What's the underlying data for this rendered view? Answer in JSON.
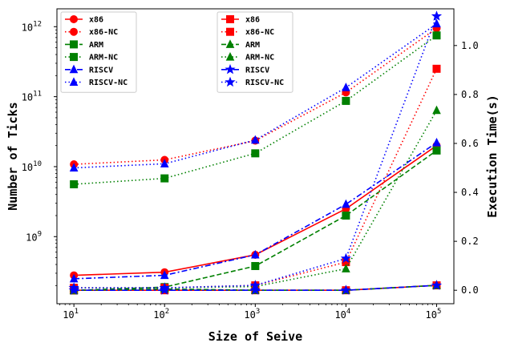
{
  "chart_data": {
    "type": "line",
    "xlabel": "Size of Seive",
    "ylabel_left": "Number of Ticks",
    "ylabel_right": "Execution Time(s)",
    "x": [
      10,
      100,
      1000,
      10000,
      100000
    ],
    "x_scale": "log",
    "xlim": [
      6.5,
      155000
    ],
    "y_left_scale": "log",
    "y_left_lim": [
      110000000,
      1800000000000
    ],
    "y_right_scale": "linear",
    "y_right_lim": [
      -0.055,
      1.15
    ],
    "x_ticks": [
      {
        "value": 10,
        "base": "10",
        "exp": "1"
      },
      {
        "value": 100,
        "base": "10",
        "exp": "2"
      },
      {
        "value": 1000,
        "base": "10",
        "exp": "3"
      },
      {
        "value": 10000,
        "base": "10",
        "exp": "4"
      },
      {
        "value": 100000,
        "base": "10",
        "exp": "5"
      }
    ],
    "y_left_ticks": [
      {
        "value": 1000000000,
        "base": "10",
        "exp": "9"
      },
      {
        "value": 10000000000,
        "base": "10",
        "exp": "10"
      },
      {
        "value": 100000000000,
        "base": "10",
        "exp": "11"
      },
      {
        "value": 1000000000000,
        "base": "10",
        "exp": "12"
      }
    ],
    "y_right_ticks": [
      {
        "value": 0.0,
        "label": "0.0"
      },
      {
        "value": 0.2,
        "label": "0.2"
      },
      {
        "value": 0.4,
        "label": "0.4"
      },
      {
        "value": 0.6,
        "label": "0.6"
      },
      {
        "value": 0.8,
        "label": "0.8"
      },
      {
        "value": 1.0,
        "label": "1.0"
      }
    ],
    "legends": [
      {
        "placement": "top-left",
        "axis": "left",
        "entries": [
          "x86",
          "x86-NC",
          "ARM",
          "ARM-NC",
          "RISCV",
          "RISCV-NC"
        ]
      },
      {
        "placement": "top-center",
        "axis": "right",
        "entries": [
          "x86",
          "x86-NC",
          "ARM",
          "ARM-NC",
          "RISCV",
          "RISCV-NC"
        ]
      }
    ],
    "series_left": [
      {
        "name": "x86",
        "color": "#ff0000",
        "dash": "solid",
        "marker": "circle",
        "values": [
          280000000,
          310000000,
          550000000,
          2500000000,
          20000000000
        ]
      },
      {
        "name": "x86-NC",
        "color": "#ff0000",
        "dash": "dotted",
        "marker": "circle",
        "values": [
          10800000000,
          12500000000,
          23500000000,
          115000000000,
          950000000000
        ]
      },
      {
        "name": "ARM",
        "color": "#008000",
        "dash": "dashed",
        "marker": "square",
        "values": [
          170000000,
          190000000,
          380000000,
          2000000000,
          17000000000
        ]
      },
      {
        "name": "ARM-NC",
        "color": "#008000",
        "dash": "dotted",
        "marker": "square",
        "values": [
          5600000000,
          6800000000,
          15500000000,
          87000000000,
          750000000000
        ]
      },
      {
        "name": "RISCV",
        "color": "#0000ff",
        "dash": "dashdot",
        "marker": "triangle",
        "values": [
          250000000,
          280000000,
          550000000,
          2900000000,
          22000000000
        ]
      },
      {
        "name": "RISCV-NC",
        "color": "#0000ff",
        "dash": "dotted",
        "marker": "triangle",
        "values": [
          9600000000,
          11000000000,
          24000000000,
          135000000000,
          1100000000000
        ]
      }
    ],
    "series_right": [
      {
        "name": "x86",
        "color": "#ff0000",
        "dash": "solid",
        "marker": "square",
        "values": [
          0.0,
          0.0,
          0.0,
          0.0,
          0.02
        ]
      },
      {
        "name": "x86-NC",
        "color": "#ff0000",
        "dash": "dotted",
        "marker": "square",
        "values": [
          0.01,
          0.01,
          0.02,
          0.115,
          0.905
        ]
      },
      {
        "name": "ARM",
        "color": "#008000",
        "dash": "dashed",
        "marker": "triangle",
        "values": [
          0.0,
          0.005,
          0.0,
          0.0,
          0.02
        ]
      },
      {
        "name": "ARM-NC",
        "color": "#008000",
        "dash": "dotted",
        "marker": "triangle",
        "values": [
          0.01,
          0.01,
          0.015,
          0.088,
          0.735
        ]
      },
      {
        "name": "RISCV",
        "color": "#0000ff",
        "dash": "dashdot",
        "marker": "star",
        "values": [
          0.0,
          0.0,
          0.0,
          0.0,
          0.02
        ]
      },
      {
        "name": "RISCV-NC",
        "color": "#0000ff",
        "dash": "dotted",
        "marker": "star",
        "values": [
          0.01,
          0.01,
          0.02,
          0.13,
          1.12
        ]
      }
    ]
  }
}
